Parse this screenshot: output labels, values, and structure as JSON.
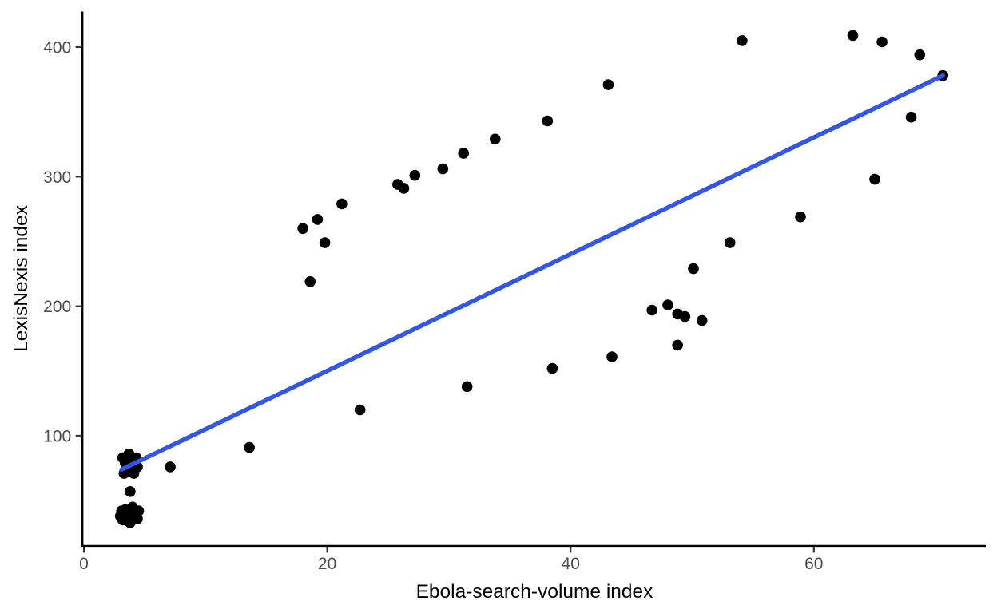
{
  "figure": {
    "background": "#ffffff"
  },
  "chart_data": {
    "type": "scatter",
    "title": "",
    "xlabel": "Ebola-search-volume index",
    "ylabel": "LexisNexis index",
    "xlim": [
      0,
      74
    ],
    "ylim": [
      15,
      427
    ],
    "x_ticks": [
      0,
      20,
      40,
      60
    ],
    "y_ticks": [
      100,
      200,
      300,
      400
    ],
    "grid": false,
    "legend_position": "none",
    "point_color": "#000000",
    "trend_color": "#3355E8",
    "axis_line_color": "#000000",
    "tick_mark_color": "#333333",
    "axis_text_color": "#4d4d4d",
    "points": [
      [
        3.0,
        38
      ],
      [
        3.1,
        42
      ],
      [
        3.2,
        35
      ],
      [
        3.2,
        83
      ],
      [
        3.3,
        71
      ],
      [
        3.4,
        43
      ],
      [
        3.4,
        79
      ],
      [
        3.5,
        40
      ],
      [
        3.6,
        74
      ],
      [
        3.7,
        86
      ],
      [
        3.8,
        33
      ],
      [
        3.8,
        57
      ],
      [
        4.0,
        45
      ],
      [
        4.0,
        80
      ],
      [
        4.1,
        39
      ],
      [
        4.1,
        71
      ],
      [
        4.3,
        83
      ],
      [
        4.4,
        36
      ],
      [
        4.4,
        76
      ],
      [
        4.5,
        42
      ],
      [
        7.1,
        76
      ],
      [
        13.6,
        91
      ],
      [
        18.0,
        260
      ],
      [
        18.6,
        219
      ],
      [
        19.2,
        267
      ],
      [
        19.8,
        249
      ],
      [
        21.2,
        279
      ],
      [
        22.7,
        120
      ],
      [
        25.8,
        294
      ],
      [
        26.3,
        291
      ],
      [
        27.2,
        301
      ],
      [
        29.5,
        306
      ],
      [
        31.2,
        318
      ],
      [
        31.5,
        138
      ],
      [
        33.8,
        329
      ],
      [
        38.1,
        343
      ],
      [
        38.5,
        152
      ],
      [
        43.1,
        371
      ],
      [
        43.4,
        161
      ],
      [
        46.7,
        197
      ],
      [
        48.0,
        201
      ],
      [
        48.8,
        170
      ],
      [
        48.8,
        194
      ],
      [
        49.4,
        192
      ],
      [
        50.1,
        229
      ],
      [
        50.8,
        189
      ],
      [
        53.1,
        249
      ],
      [
        54.1,
        405
      ],
      [
        58.9,
        269
      ],
      [
        63.2,
        409
      ],
      [
        65.0,
        298
      ],
      [
        65.6,
        404
      ],
      [
        68.0,
        346
      ],
      [
        68.7,
        394
      ],
      [
        70.6,
        378
      ]
    ],
    "trend_line": {
      "type": "linear",
      "x1": 3.1,
      "y1": 74,
      "x2": 70.6,
      "y2": 378
    }
  }
}
